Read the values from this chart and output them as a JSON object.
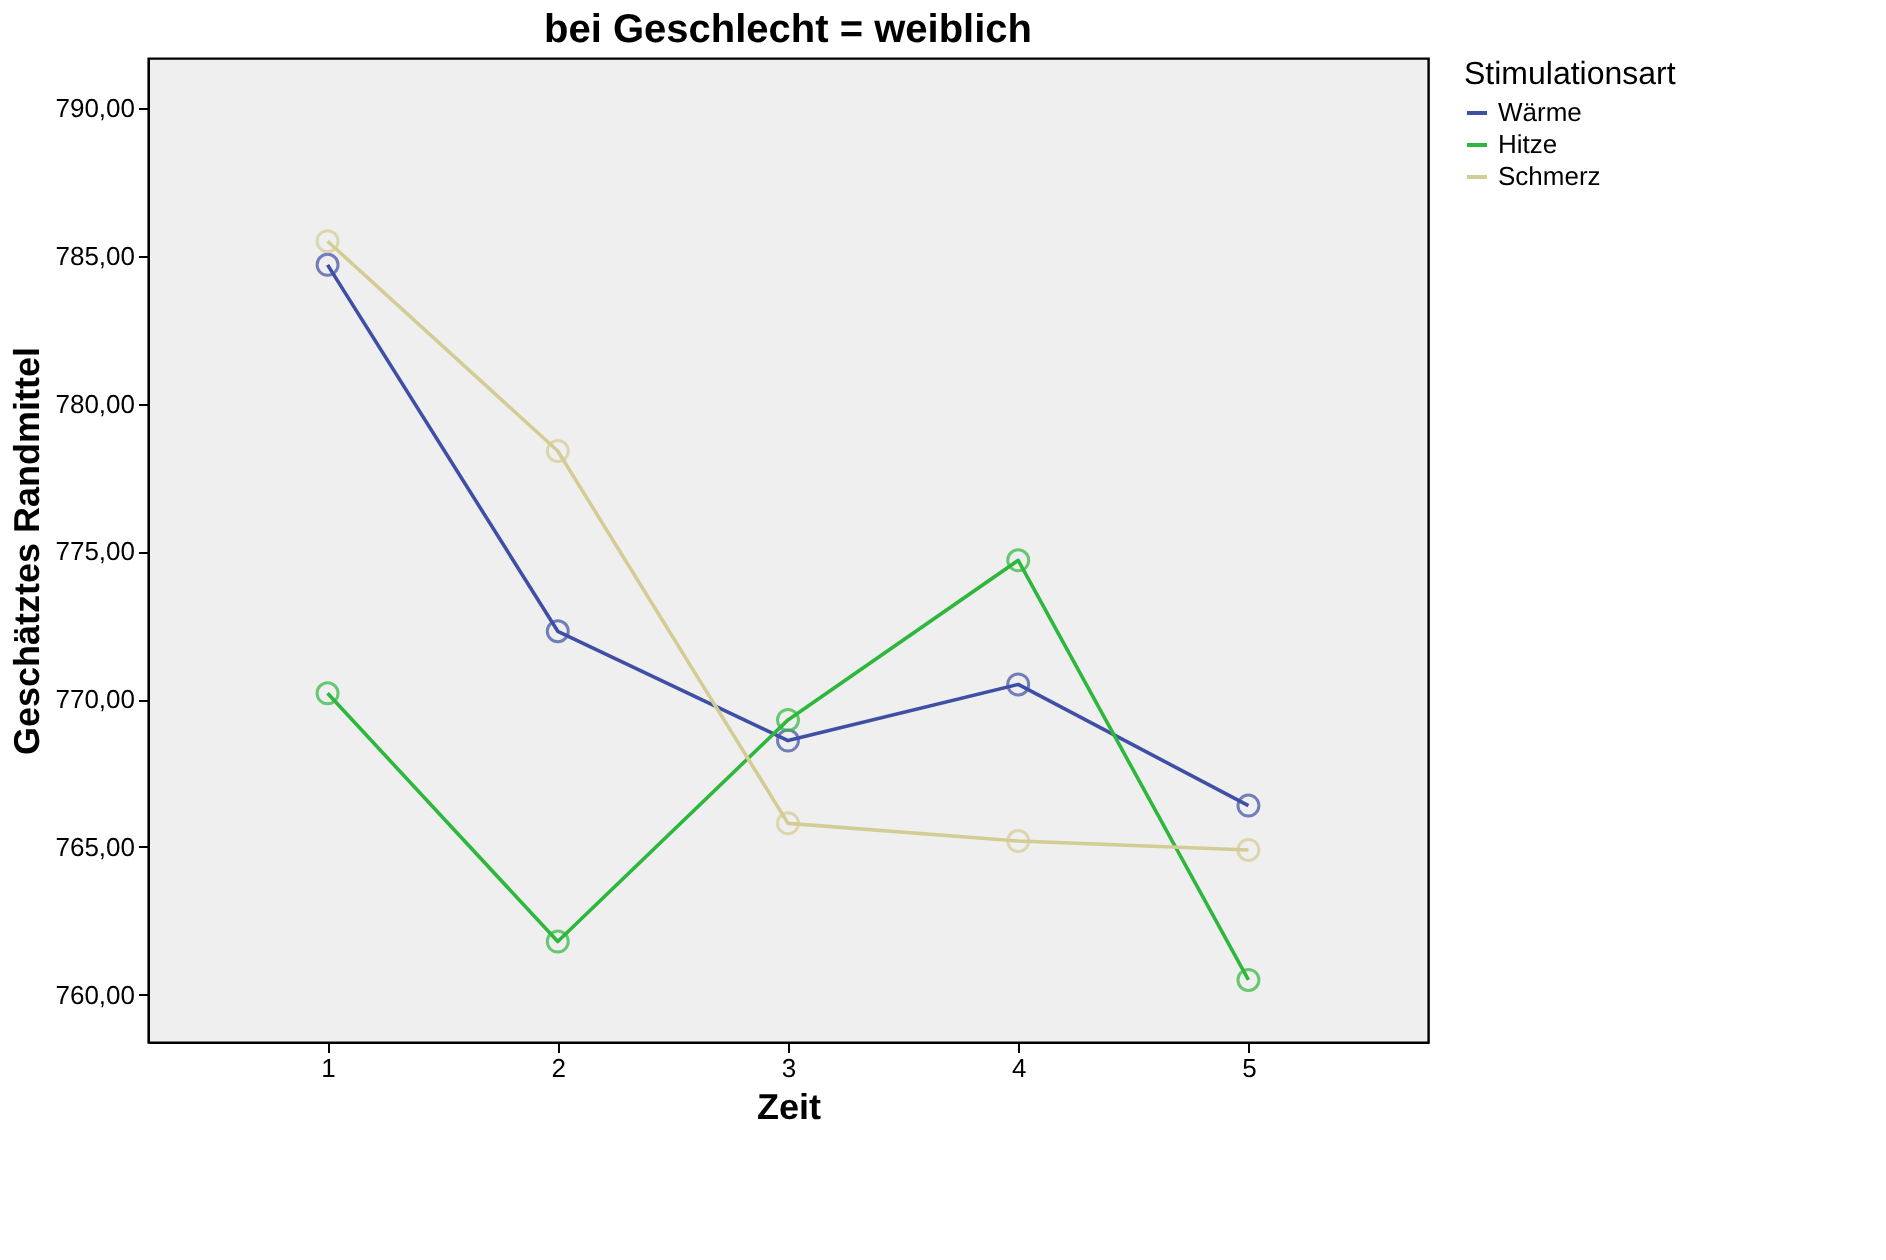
{
  "chart_data": {
    "type": "line",
    "title": "bei Geschlecht = weiblich",
    "xlabel": "Zeit",
    "ylabel": "Geschätztes Randmittel",
    "legend_title": "Stimulationsart",
    "x": [
      1,
      2,
      3,
      4,
      5
    ],
    "series": [
      {
        "name": "Wärme",
        "color": "#3e4fa5",
        "values": [
          784.7,
          772.3,
          768.6,
          770.5,
          766.4
        ]
      },
      {
        "name": "Hitze",
        "color": "#2db83d",
        "values": [
          770.2,
          761.8,
          769.3,
          774.7,
          760.5
        ]
      },
      {
        "name": "Schmerz",
        "color": "#d4cc95",
        "values": [
          785.5,
          778.4,
          765.8,
          765.2,
          764.9
        ]
      }
    ],
    "xlim": [
      0.22,
      5.78
    ],
    "xticks": [
      1,
      2,
      3,
      4,
      5
    ],
    "ylim": [
      758.4,
      791.7
    ],
    "yticks": [
      {
        "value": 760,
        "label": "760,00"
      },
      {
        "value": 765,
        "label": "765,00"
      },
      {
        "value": 770,
        "label": "770,00"
      },
      {
        "value": 775,
        "label": "775,00"
      },
      {
        "value": 780,
        "label": "780,00"
      },
      {
        "value": 785,
        "label": "785,00"
      },
      {
        "value": 790,
        "label": "790,00"
      }
    ],
    "grid": false,
    "legend": "right",
    "marker": "circle",
    "line_style": "solid"
  }
}
